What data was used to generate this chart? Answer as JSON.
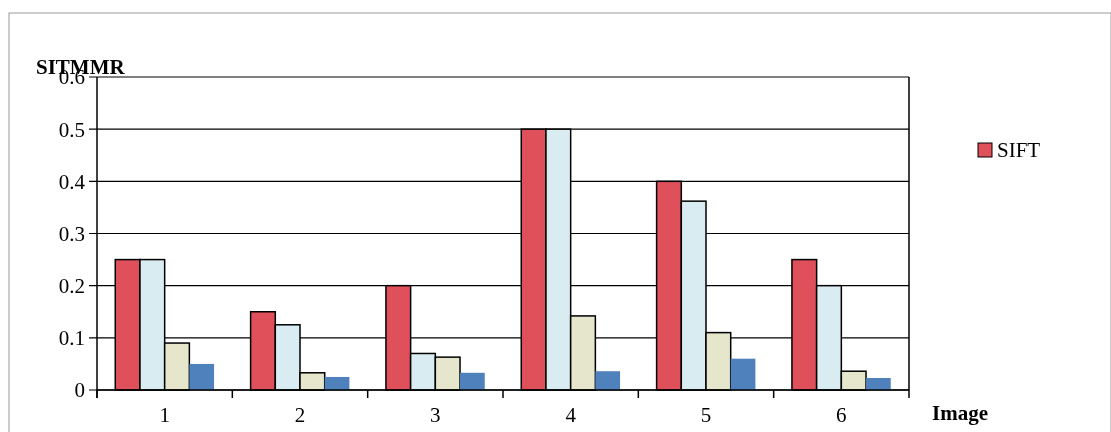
{
  "chart_data": {
    "type": "bar",
    "xlabel": "Image",
    "ylabel": "SITMMR",
    "categories": [
      "1",
      "2",
      "3",
      "4",
      "5",
      "6"
    ],
    "series": [
      {
        "name": "SIFT",
        "color": "#e0505a",
        "values": [
          0.25,
          0.15,
          0.2,
          0.5,
          0.4,
          0.25
        ]
      },
      {
        "color": "#d8ecf2",
        "values": [
          0.25,
          0.125,
          0.07,
          0.5,
          0.362,
          0.2
        ]
      },
      {
        "color": "#e6e6cc",
        "values": [
          0.09,
          0.033,
          0.063,
          0.142,
          0.11,
          0.036
        ]
      },
      {
        "color": "#4f81bd",
        "values": [
          0.05,
          0.025,
          0.033,
          0.036,
          0.06,
          0.023
        ]
      }
    ],
    "ylim": [
      0,
      0.6
    ],
    "yticks": [
      0,
      0.1,
      0.2,
      0.3,
      0.4,
      0.5,
      0.6
    ],
    "grid": "y",
    "legend": "right"
  }
}
